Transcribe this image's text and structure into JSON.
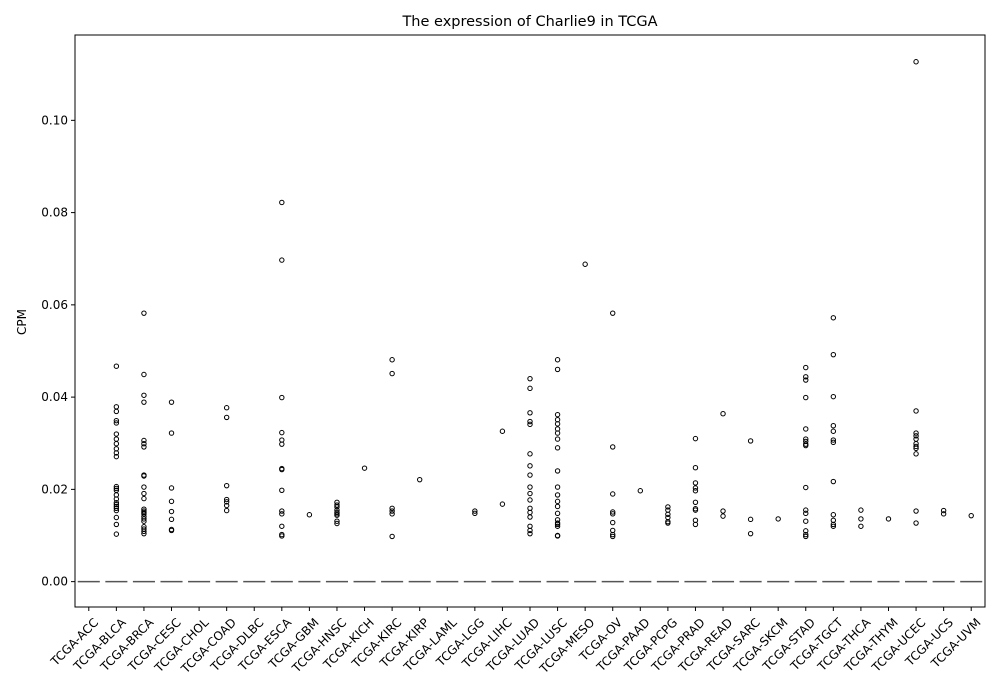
{
  "chart_data": {
    "type": "box",
    "title": "The expression of Charlie9 in TCGA",
    "xlabel": "",
    "ylabel": "CPM",
    "ylim": [
      -0.0055,
      0.1185
    ],
    "yticks": [
      0.0,
      0.02,
      0.04,
      0.06,
      0.08,
      0.1
    ],
    "ytick_labels": [
      "0.00",
      "0.02",
      "0.04",
      "0.06",
      "0.08",
      "0.10"
    ],
    "grid": false,
    "median_color": "#555555",
    "categories": [
      "TCGA-ACC",
      "TCGA-BLCA",
      "TCGA-BRCA",
      "TCGA-CESC",
      "TCGA-CHOL",
      "TCGA-COAD",
      "TCGA-DLBC",
      "TCGA-ESCA",
      "TCGA-GBM",
      "TCGA-HNSC",
      "TCGA-KICH",
      "TCGA-KIRC",
      "TCGA-KIRP",
      "TCGA-LAML",
      "TCGA-LGG",
      "TCGA-LIHC",
      "TCGA-LUAD",
      "TCGA-LUSC",
      "TCGA-MESO",
      "TCGA-OV",
      "TCGA-PAAD",
      "TCGA-PCPG",
      "TCGA-PRAD",
      "TCGA-READ",
      "TCGA-SARC",
      "TCGA-SKCM",
      "TCGA-STAD",
      "TCGA-TGCT",
      "TCGA-THCA",
      "TCGA-THYM",
      "TCGA-UCEC",
      "TCGA-UCS",
      "TCGA-UVM"
    ],
    "medians": [
      0,
      0,
      0,
      0,
      0,
      0,
      0,
      0,
      0,
      0,
      0,
      0,
      0,
      0,
      0,
      0,
      0,
      0,
      0,
      0,
      0,
      0,
      0,
      0,
      0,
      0,
      0,
      0,
      0,
      0,
      0,
      0,
      0
    ],
    "outliers": [
      [],
      [
        0.0467,
        0.0379,
        0.0369,
        0.0349,
        0.0344,
        0.032,
        0.0309,
        0.0299,
        0.0288,
        0.0279,
        0.0271,
        0.0206,
        0.0202,
        0.0198,
        0.0188,
        0.0179,
        0.0171,
        0.0167,
        0.0163,
        0.0159,
        0.0154,
        0.0139,
        0.0124,
        0.0103
      ],
      [
        0.0582,
        0.0449,
        0.0404,
        0.0389,
        0.0306,
        0.0299,
        0.0292,
        0.0231,
        0.0229,
        0.0205,
        0.0191,
        0.018,
        0.0157,
        0.0153,
        0.015,
        0.0147,
        0.0141,
        0.0136,
        0.0131,
        0.0119,
        0.0114,
        0.0109,
        0.0104
      ],
      [
        0.0389,
        0.0322,
        0.0203,
        0.0174,
        0.0152,
        0.0135,
        0.0113,
        0.0111
      ],
      [],
      [
        0.0377,
        0.0356,
        0.0208,
        0.0178,
        0.0173,
        0.0165,
        0.0154
      ],
      [],
      [
        0.0822,
        0.0697,
        0.0399,
        0.0323,
        0.0307,
        0.0298,
        0.0245,
        0.0243,
        0.0198,
        0.0153,
        0.0147,
        0.012,
        0.0102,
        0.0099
      ],
      [
        0.0145
      ],
      [
        0.0172,
        0.0166,
        0.0162,
        0.0155,
        0.015,
        0.0147,
        0.0144,
        0.0131,
        0.0126
      ],
      [
        0.0246
      ],
      [
        0.0481,
        0.0451,
        0.0159,
        0.0153,
        0.0147,
        0.0098
      ],
      [
        0.0221
      ],
      [],
      [
        0.0153,
        0.0148
      ],
      [
        0.0326,
        0.0168
      ],
      [
        0.044,
        0.0419,
        0.0366,
        0.0347,
        0.0341,
        0.0277,
        0.0251,
        0.0231,
        0.0205,
        0.0191,
        0.0177,
        0.0159,
        0.015,
        0.014,
        0.012,
        0.0111,
        0.0104
      ],
      [
        0.0481,
        0.046,
        0.0362,
        0.0351,
        0.0342,
        0.0331,
        0.0322,
        0.0309,
        0.029,
        0.024,
        0.0205,
        0.0188,
        0.0174,
        0.0163,
        0.0148,
        0.0134,
        0.0127,
        0.0124,
        0.012,
        0.01,
        0.0099
      ],
      [
        0.0688
      ],
      [
        0.0582,
        0.0292,
        0.019,
        0.0151,
        0.0147,
        0.0128,
        0.0111,
        0.0102,
        0.0098
      ],
      [
        0.0197
      ],
      [
        0.0162,
        0.0155,
        0.0146,
        0.0139,
        0.013,
        0.0127
      ],
      [
        0.031,
        0.0247,
        0.0214,
        0.0203,
        0.0197,
        0.0172,
        0.0158,
        0.0155,
        0.0133,
        0.0124
      ],
      [
        0.0364,
        0.0153,
        0.0142
      ],
      [
        0.0305,
        0.0135,
        0.0104
      ],
      [
        0.0136
      ],
      [
        0.0464,
        0.0444,
        0.0437,
        0.0399,
        0.0331,
        0.0309,
        0.0304,
        0.0298,
        0.0295,
        0.0204,
        0.0155,
        0.0148,
        0.0131,
        0.011,
        0.0102,
        0.0098
      ],
      [
        0.0572,
        0.0492,
        0.0401,
        0.0338,
        0.0326,
        0.0307,
        0.0302,
        0.0217,
        0.0145,
        0.0133,
        0.0124,
        0.012
      ],
      [
        0.0155,
        0.0136,
        0.012
      ],
      [
        0.0136
      ],
      [
        0.1127,
        0.037,
        0.0322,
        0.0316,
        0.0309,
        0.0299,
        0.0293,
        0.0289,
        0.0277,
        0.0153,
        0.0127
      ],
      [
        0.0154,
        0.0147
      ],
      [
        0.0143
      ]
    ]
  }
}
